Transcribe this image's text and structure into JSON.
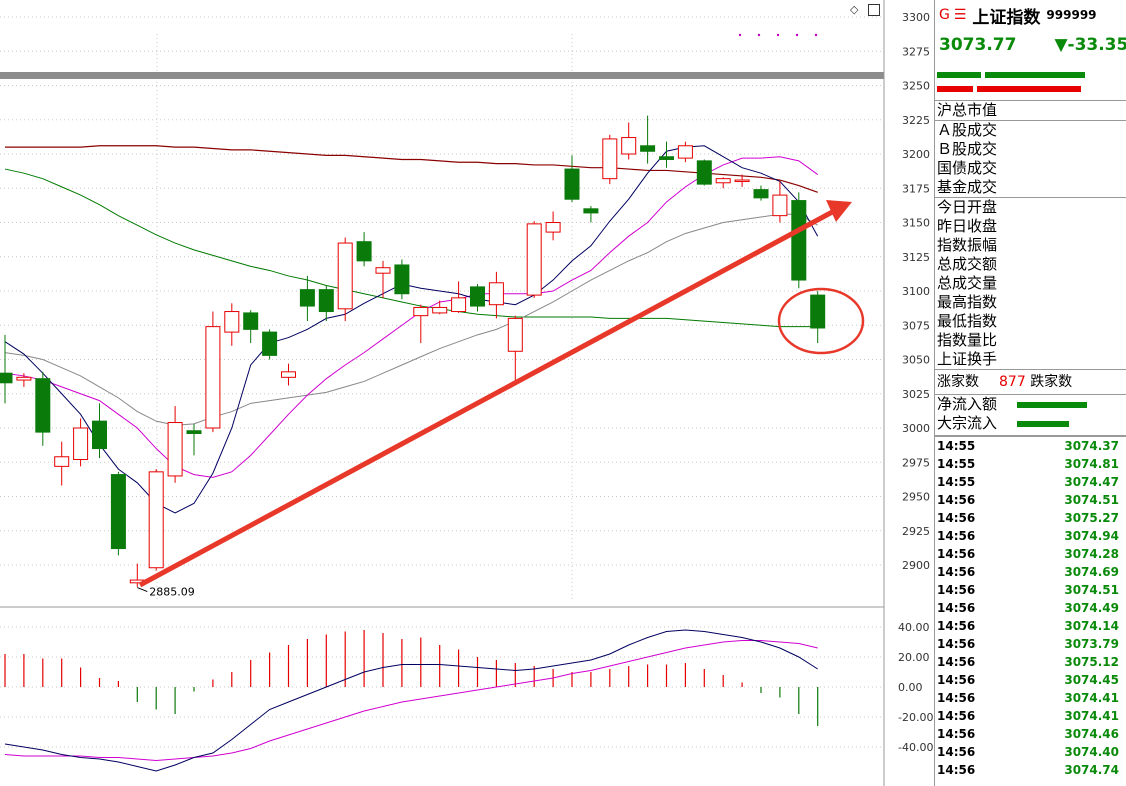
{
  "header": {
    "g_label": "G",
    "menu_icon": "menu-icon",
    "title": "上证指数",
    "code": "999999",
    "price": "3073.77",
    "change": "▼-33.35"
  },
  "colors": {
    "up": "#e60000",
    "down": "#0a7a0a",
    "ma5": "#000060",
    "ma10": "#d000d0",
    "ma20": "#888888",
    "ma60": "#007a00",
    "ma120": "#8b0000",
    "arrow": "#e8382a"
  },
  "labels": {
    "market_cap": "沪总市值",
    "a_share": "Ａ股成交",
    "b_share": "Ｂ股成交",
    "bond": "国债成交",
    "fund": "基金成交",
    "open": "今日开盘",
    "prev_close": "昨日收盘",
    "amplitude": "指数振幅",
    "turnover": "总成交额",
    "volume": "总成交量",
    "high": "最高指数",
    "low": "最低指数",
    "vol_ratio": "指数量比",
    "turnover_rate": "上证换手",
    "advancers_label": "涨家数",
    "advancers": "877",
    "decliners_label": "跌家数",
    "net_inflow": "净流入额",
    "block_inflow": "大宗流入"
  },
  "ticks": [
    {
      "t": "14:55",
      "v": "3074.37"
    },
    {
      "t": "14:55",
      "v": "3074.81"
    },
    {
      "t": "14:55",
      "v": "3074.47"
    },
    {
      "t": "14:56",
      "v": "3074.51"
    },
    {
      "t": "14:56",
      "v": "3075.27"
    },
    {
      "t": "14:56",
      "v": "3074.94"
    },
    {
      "t": "14:56",
      "v": "3074.28"
    },
    {
      "t": "14:56",
      "v": "3074.69"
    },
    {
      "t": "14:56",
      "v": "3074.51"
    },
    {
      "t": "14:56",
      "v": "3074.49"
    },
    {
      "t": "14:56",
      "v": "3074.14"
    },
    {
      "t": "14:56",
      "v": "3073.79"
    },
    {
      "t": "14:56",
      "v": "3075.12"
    },
    {
      "t": "14:56",
      "v": "3074.45"
    },
    {
      "t": "14:56",
      "v": "3074.41"
    },
    {
      "t": "14:56",
      "v": "3074.41"
    },
    {
      "t": "14:56",
      "v": "3074.46"
    },
    {
      "t": "14:56",
      "v": "3074.40"
    },
    {
      "t": "14:56",
      "v": "3074.74"
    }
  ],
  "chart_data": {
    "type": "candlestick",
    "ylim": [
      2875,
      3300
    ],
    "yticks": [
      2900,
      2925,
      2950,
      2975,
      3000,
      3025,
      3050,
      3075,
      3100,
      3125,
      3150,
      3175,
      3200,
      3225,
      3250,
      3275,
      3300
    ],
    "low_annotation": "2885.09",
    "candles": [
      {
        "o": 3040,
        "c": 3033,
        "h": 3068,
        "l": 3018
      },
      {
        "o": 3035,
        "c": 3037,
        "h": 3040,
        "l": 3030
      },
      {
        "o": 3036,
        "c": 2997,
        "h": 3041,
        "l": 2987
      },
      {
        "o": 2972,
        "c": 2979,
        "h": 2990,
        "l": 2958
      },
      {
        "o": 2977,
        "c": 3000,
        "h": 3007,
        "l": 2972
      },
      {
        "o": 3005,
        "c": 2985,
        "h": 3018,
        "l": 2978
      },
      {
        "o": 2966,
        "c": 2912,
        "h": 2968,
        "l": 2907
      },
      {
        "o": 2887,
        "c": 2889,
        "h": 2901,
        "l": 2884
      },
      {
        "o": 2898,
        "c": 2968,
        "h": 2970,
        "l": 2896
      },
      {
        "o": 2965,
        "c": 3004,
        "h": 3016,
        "l": 2960
      },
      {
        "o": 2998,
        "c": 2996,
        "h": 3003,
        "l": 2980
      },
      {
        "o": 3000,
        "c": 3074,
        "h": 3085,
        "l": 2997
      },
      {
        "o": 3070,
        "c": 3085,
        "h": 3091,
        "l": 3060
      },
      {
        "o": 3084,
        "c": 3072,
        "h": 3086,
        "l": 3062
      },
      {
        "o": 3070,
        "c": 3053,
        "h": 3072,
        "l": 3050
      },
      {
        "o": 3037,
        "c": 3041,
        "h": 3047,
        "l": 3031
      },
      {
        "o": 3101,
        "c": 3089,
        "h": 3111,
        "l": 3078
      },
      {
        "o": 3101,
        "c": 3085,
        "h": 3104,
        "l": 3078
      },
      {
        "o": 3087,
        "c": 3135,
        "h": 3139,
        "l": 3078
      },
      {
        "o": 3136,
        "c": 3122,
        "h": 3143,
        "l": 3118
      },
      {
        "o": 3113,
        "c": 3117,
        "h": 3122,
        "l": 3095
      },
      {
        "o": 3119,
        "c": 3098,
        "h": 3123,
        "l": 3094
      },
      {
        "o": 3082,
        "c": 3088,
        "h": 3090,
        "l": 3062
      },
      {
        "o": 3084,
        "c": 3088,
        "h": 3093,
        "l": 3083
      },
      {
        "o": 3085,
        "c": 3095,
        "h": 3107,
        "l": 3084
      },
      {
        "o": 3103,
        "c": 3089,
        "h": 3105,
        "l": 3085
      },
      {
        "o": 3090,
        "c": 3106,
        "h": 3114,
        "l": 3080
      },
      {
        "o": 3056,
        "c": 3080,
        "h": 3082,
        "l": 3035
      },
      {
        "o": 3097,
        "c": 3149,
        "h": 3151,
        "l": 3095
      },
      {
        "o": 3143,
        "c": 3150,
        "h": 3158,
        "l": 3137
      },
      {
        "o": 3189,
        "c": 3167,
        "h": 3199,
        "l": 3165
      },
      {
        "o": 3160,
        "c": 3157,
        "h": 3162,
        "l": 3150
      },
      {
        "o": 3182,
        "c": 3211,
        "h": 3214,
        "l": 3178
      },
      {
        "o": 3200,
        "c": 3212,
        "h": 3223,
        "l": 3196
      },
      {
        "o": 3206,
        "c": 3202,
        "h": 3228,
        "l": 3193
      },
      {
        "o": 3198,
        "c": 3196,
        "h": 3209,
        "l": 3190
      },
      {
        "o": 3197,
        "c": 3206,
        "h": 3209,
        "l": 3194
      },
      {
        "o": 3195,
        "c": 3178,
        "h": 3196,
        "l": 3177
      },
      {
        "o": 3179,
        "c": 3182,
        "h": 3183,
        "l": 3175
      },
      {
        "o": 3180,
        "c": 3181,
        "h": 3185,
        "l": 3176
      },
      {
        "o": 3174,
        "c": 3168,
        "h": 3177,
        "l": 3166
      },
      {
        "o": 3155,
        "c": 3170,
        "h": 3180,
        "l": 3150
      },
      {
        "o": 3166,
        "c": 3108,
        "h": 3172,
        "l": 3102
      },
      {
        "o": 3097,
        "c": 3073,
        "h": 3100,
        "l": 3062
      }
    ],
    "ma5": [
      3063,
      3054,
      3040,
      3025,
      3010,
      2988,
      2970,
      2960,
      2945,
      2938,
      2945,
      2967,
      3000,
      3046,
      3062,
      3066,
      3072,
      3080,
      3083,
      3091,
      3098,
      3105,
      3102,
      3100,
      3098,
      3094,
      3092,
      3090,
      3097,
      3108,
      3122,
      3133,
      3151,
      3167,
      3186,
      3202,
      3205,
      3206,
      3198,
      3190,
      3186,
      3180,
      3165,
      3140
    ],
    "ma10": [
      3040,
      3038,
      3035,
      3030,
      3025,
      3020,
      3010,
      3000,
      2985,
      2972,
      2966,
      2964,
      2968,
      2980,
      2995,
      3010,
      3024,
      3036,
      3046,
      3055,
      3065,
      3075,
      3085,
      3092,
      3094,
      3098,
      3098,
      3098,
      3098,
      3100,
      3108,
      3115,
      3128,
      3140,
      3150,
      3165,
      3176,
      3185,
      3192,
      3197,
      3197,
      3198,
      3195,
      3185
    ],
    "ma20": [
      3055,
      3053,
      3050,
      3044,
      3038,
      3030,
      3022,
      3012,
      3005,
      3002,
      3003,
      3008,
      3012,
      3018,
      3020,
      3022,
      3024,
      3026,
      3030,
      3034,
      3040,
      3046,
      3052,
      3058,
      3063,
      3068,
      3072,
      3078,
      3085,
      3092,
      3100,
      3108,
      3115,
      3122,
      3128,
      3136,
      3142,
      3146,
      3150,
      3152,
      3154,
      3156,
      3156,
      3148
    ],
    "ma60": [
      3189,
      3186,
      3182,
      3176,
      3170,
      3163,
      3155,
      3148,
      3141,
      3135,
      3130,
      3126,
      3122,
      3118,
      3115,
      3111,
      3108,
      3104,
      3101,
      3098,
      3095,
      3092,
      3089,
      3087,
      3085,
      3083,
      3082,
      3081,
      3081,
      3081,
      3081,
      3081,
      3080,
      3080,
      3080,
      3080,
      3079,
      3078,
      3077,
      3076,
      3075,
      3074,
      3074,
      3074
    ],
    "ma120": [
      3205,
      3205,
      3205,
      3205,
      3205,
      3206,
      3206,
      3206,
      3206,
      3205,
      3205,
      3204,
      3203,
      3203,
      3202,
      3201,
      3200,
      3199,
      3199,
      3198,
      3197,
      3196,
      3196,
      3195,
      3194,
      3194,
      3193,
      3193,
      3192,
      3192,
      3191,
      3190,
      3190,
      3189,
      3188,
      3188,
      3187,
      3186,
      3185,
      3184,
      3183,
      3181,
      3177,
      3172
    ],
    "macd": {
      "ylim": [
        -55,
        50
      ],
      "yticks": [
        40,
        20,
        0,
        -20,
        -40
      ],
      "hist": [
        22,
        22,
        19,
        19,
        13,
        6,
        4,
        -10,
        -15,
        -18,
        -3,
        5,
        10,
        18,
        23,
        28,
        32,
        35,
        37,
        38,
        36,
        32,
        33,
        28,
        25,
        20,
        18,
        16,
        14,
        12,
        10,
        10,
        12,
        14,
        15,
        15,
        16,
        12,
        8,
        3,
        -4,
        -7,
        -18,
        -26
      ],
      "dif": [
        -38,
        -40,
        -42,
        -45,
        -47,
        -48,
        -50,
        -53,
        -56,
        -52,
        -47,
        -44,
        -35,
        -25,
        -15,
        -10,
        -5,
        0,
        5,
        10,
        13,
        15,
        15,
        15,
        14,
        13,
        12,
        11,
        12,
        14,
        16,
        18,
        22,
        28,
        33,
        37,
        38,
        37,
        35,
        33,
        30,
        26,
        20,
        12
      ],
      "dea": [
        -45,
        -46,
        -46,
        -46,
        -46,
        -47,
        -47,
        -48,
        -49,
        -48,
        -47,
        -46,
        -44,
        -41,
        -36,
        -32,
        -28,
        -24,
        -20,
        -16,
        -13,
        -10,
        -8,
        -6,
        -4,
        -2,
        0,
        2,
        4,
        6,
        9,
        11,
        14,
        17,
        20,
        23,
        26,
        28,
        30,
        31,
        31,
        30,
        29,
        26
      ]
    }
  }
}
